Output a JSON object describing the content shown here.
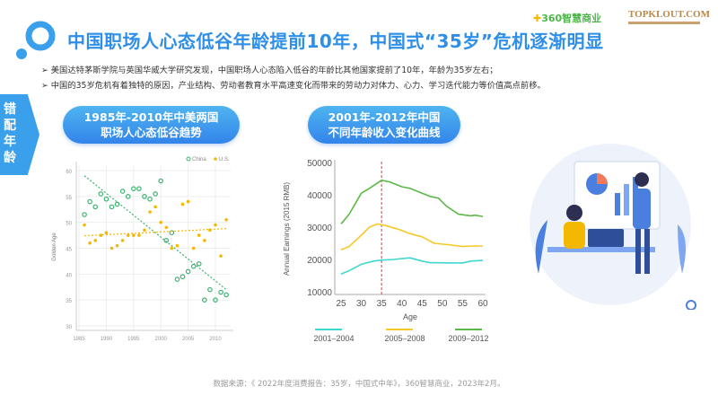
{
  "header": {
    "title": "中国职场人心态低谷年龄提前10年，中国式“35岁”危机逐渐明显",
    "logo_360": "360智慧商业",
    "logo_topklout": "TOPKLOUT.COM"
  },
  "bullets": [
    "美国达特茅斯学院与英国华威大学研究发现，中国职场人心态陷入低谷的年龄比其他国家提前了10年，年龄为35岁左右；",
    "中国的35岁危机有着独特的原因，产业结构、劳动者教育水平高速变化而带来的劳动力对体力、心力、学习迭代能力等价值高点前移。"
  ],
  "side_tab": [
    "错",
    "配",
    "年",
    "龄"
  ],
  "pill1": [
    "1985年-2010年中美两国",
    "职场人心态低谷趋势"
  ],
  "pill2": [
    "2001年-2012年中国",
    "不同年龄收入变化曲线"
  ],
  "source": "数据来源：《 2022年度消费报告：35岁，中国式中年》，360智慧商业，2023年2月。",
  "colors": {
    "accent": "#2f8fe8",
    "china": "#3cb371",
    "us": "#f5b800",
    "cyan": "#3fd6d0",
    "yellow": "#f7c82a",
    "green": "#5cb848"
  },
  "chart_data": [
    {
      "type": "scatter",
      "title": "",
      "xlabel": "",
      "ylabel": "Golden Age",
      "xlim": [
        1985,
        2012
      ],
      "ylim": [
        30,
        60
      ],
      "xticks": [
        1985,
        1990,
        1995,
        2000,
        2005,
        2010
      ],
      "yticks": [
        30,
        35,
        40,
        45,
        50,
        55,
        60
      ],
      "legend": "top-right",
      "series": [
        {
          "name": "China",
          "x": [
            1986,
            1987,
            1988,
            1989,
            1990,
            1991,
            1992,
            1993,
            1994,
            1995,
            1996,
            1997,
            1998,
            1999,
            2000,
            2001,
            2002,
            2003,
            2004,
            2005,
            2006,
            2007,
            2008,
            2009,
            2010,
            2011,
            2012
          ],
          "y": [
            51.5,
            54,
            53,
            55.5,
            54.5,
            53,
            53.5,
            56,
            55,
            56.5,
            56.5,
            55,
            54.5,
            55.5,
            58,
            46.5,
            48,
            39,
            39.5,
            40.5,
            41.5,
            42,
            35,
            37,
            35,
            36.5,
            36
          ],
          "trend": [
            [
              1986,
              59
            ],
            [
              2012,
              37
            ]
          ]
        },
        {
          "name": "U.S.",
          "x": [
            1986,
            1987,
            1988,
            1989,
            1990,
            1991,
            1992,
            1993,
            1994,
            1995,
            1996,
            1997,
            1998,
            1999,
            2000,
            2001,
            2002,
            2003,
            2004,
            2005,
            2006,
            2007,
            2008,
            2009,
            2010,
            2011,
            2012
          ],
          "y": [
            49.5,
            46,
            46.5,
            47.5,
            48,
            45,
            45.5,
            46.5,
            47.5,
            47.5,
            47.5,
            48.5,
            52,
            53,
            50,
            49,
            45,
            45.5,
            53.5,
            54,
            45,
            47.5,
            46.5,
            48.5,
            49.5,
            43.5,
            50.5
          ],
          "trend": [
            [
              1986,
              47.4
            ],
            [
              2012,
              48.8
            ]
          ]
        }
      ]
    },
    {
      "type": "line",
      "title": "",
      "xlabel": "Age",
      "ylabel": "Annual  Earnings  (2015 RMB)",
      "xlim": [
        25,
        60
      ],
      "ylim": [
        10000,
        50000
      ],
      "xticks": [
        25,
        30,
        35,
        40,
        45,
        50,
        55,
        60
      ],
      "yticks": [
        10000,
        20000,
        30000,
        40000,
        50000
      ],
      "marker_line_x": 35,
      "legend": "bottom",
      "series": [
        {
          "name": "2001-2004",
          "x": [
            25,
            27,
            30,
            33,
            35,
            38,
            42,
            45,
            47,
            55,
            57,
            60
          ],
          "y": [
            15500,
            16500,
            18500,
            19500,
            19800,
            20000,
            20500,
            19500,
            19000,
            18900,
            19500,
            19700
          ]
        },
        {
          "name": "2005-2008",
          "x": [
            25,
            27,
            30,
            32,
            34,
            36,
            40,
            42,
            45,
            48,
            52,
            55,
            58,
            60
          ],
          "y": [
            23000,
            24000,
            27500,
            30000,
            31000,
            30500,
            29000,
            28000,
            27000,
            25000,
            24500,
            24000,
            24200,
            24100
          ]
        },
        {
          "name": "2009-2012",
          "x": [
            25,
            27,
            30,
            32,
            35,
            37,
            40,
            42,
            45,
            47,
            49,
            51,
            54,
            57,
            58,
            60
          ],
          "y": [
            31000,
            34000,
            40500,
            42000,
            44500,
            44000,
            42500,
            42000,
            40500,
            39500,
            39000,
            36500,
            34000,
            33500,
            33700,
            33300
          ]
        }
      ]
    }
  ]
}
